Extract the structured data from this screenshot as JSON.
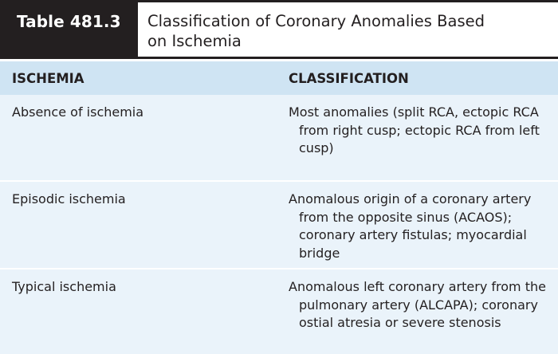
{
  "table": {
    "number": "Table 481.3",
    "title_line1": "Classification of Coronary Anomalies Based",
    "title_line2": "on Ischemia",
    "headers": {
      "col1": "ISCHEMIA",
      "col2": "CLASSIFICATION"
    },
    "rows": [
      {
        "ischemia": "Absence of ischemia",
        "classification": "Most anomalies (split RCA, ectopic RCA from right cusp; ectopic RCA from left cusp)"
      },
      {
        "ischemia": "Episodic ischemia",
        "classification": "Anomalous origin of a coronary artery from the opposite sinus (ACAOS); coronary artery fistulas; myocardial bridge"
      },
      {
        "ischemia": "Typical ischemia",
        "classification": "Anomalous left coronary artery from the pulmonary artery (ALCAPA); coronary ostial atresia or severe stenosis"
      }
    ]
  },
  "colors": {
    "title_bar": "#231f20",
    "header_bg": "#cfe4f3",
    "row_bg": "#eaf3fa",
    "text": "#231f20"
  }
}
